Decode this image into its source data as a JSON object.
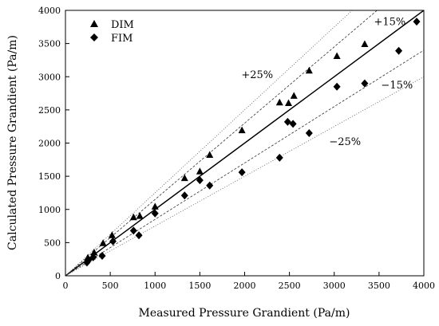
{
  "chart_data": {
    "type": "scatter",
    "xlabel": "Measured Pressure Grandient (Pa/m)",
    "ylabel": "Calculated Pressure Grandient (Pa/m)",
    "xlim": [
      0,
      4000
    ],
    "ylim": [
      0,
      4000
    ],
    "x_ticks": [
      "0",
      "500",
      "1000",
      "1500",
      "2000",
      "2500",
      "3000",
      "3500",
      "4000"
    ],
    "y_ticks": [
      "0",
      "500",
      "1000",
      "1500",
      "2000",
      "2500",
      "3000",
      "3500",
      "4000"
    ],
    "grid": false,
    "legend_position": "top-left",
    "series": [
      {
        "name": "DIM",
        "marker": "triangle",
        "color": "#000000",
        "points": [
          [
            250,
            270
          ],
          [
            320,
            350
          ],
          [
            420,
            490
          ],
          [
            520,
            610
          ],
          [
            760,
            880
          ],
          [
            830,
            900
          ],
          [
            1000,
            1040
          ],
          [
            1330,
            1470
          ],
          [
            1500,
            1570
          ],
          [
            1610,
            1820
          ],
          [
            1970,
            2190
          ],
          [
            2390,
            2610
          ],
          [
            2490,
            2600
          ],
          [
            2550,
            2710
          ],
          [
            2720,
            3090
          ],
          [
            3030,
            3310
          ],
          [
            3340,
            3490
          ]
        ]
      },
      {
        "name": "FIM",
        "marker": "diamond",
        "color": "#000000",
        "points": [
          [
            240,
            200
          ],
          [
            260,
            240
          ],
          [
            310,
            280
          ],
          [
            410,
            300
          ],
          [
            530,
            520
          ],
          [
            760,
            680
          ],
          [
            820,
            610
          ],
          [
            1000,
            940
          ],
          [
            1330,
            1210
          ],
          [
            1500,
            1440
          ],
          [
            1610,
            1360
          ],
          [
            1970,
            1560
          ],
          [
            2390,
            1780
          ],
          [
            2480,
            2320
          ],
          [
            2540,
            2290
          ],
          [
            2720,
            2150
          ],
          [
            3030,
            2850
          ],
          [
            3340,
            2900
          ],
          [
            3720,
            3390
          ],
          [
            3920,
            3830
          ]
        ]
      }
    ],
    "reference_lines": [
      {
        "label": "",
        "slope": 1.0,
        "style": "solid"
      },
      {
        "label": "+15%",
        "slope": 1.15,
        "style": "dashed"
      },
      {
        "label": "−15%",
        "slope": 0.85,
        "style": "dashed"
      },
      {
        "label": "+25%",
        "slope": 1.25,
        "style": "dotted"
      },
      {
        "label": "−25%",
        "slope": 0.75,
        "style": "dotted"
      }
    ]
  }
}
